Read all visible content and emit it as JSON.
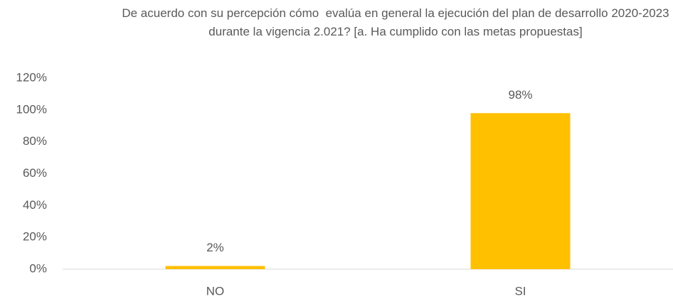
{
  "chart_data": {
    "type": "bar",
    "title": "De acuerdo con su percepción cómo  evalúa en general la ejecución del plan de desarrollo 2020-2023 durante la vigencia 2.021? [a. Ha cumplido con las metas propuestas]",
    "categories": [
      "NO",
      "SI"
    ],
    "values": [
      2,
      98
    ],
    "value_labels": [
      "2%",
      "98%"
    ],
    "color": "#ffc000",
    "ylim": [
      0,
      120
    ],
    "yticks": [
      {
        "value": 0,
        "label": "0%"
      },
      {
        "value": 20,
        "label": "20%"
      },
      {
        "value": 40,
        "label": "40%"
      },
      {
        "value": 60,
        "label": "60%"
      },
      {
        "value": 80,
        "label": "80%"
      },
      {
        "value": 100,
        "label": "100%"
      },
      {
        "value": 120,
        "label": "120%"
      }
    ],
    "grid": false
  }
}
